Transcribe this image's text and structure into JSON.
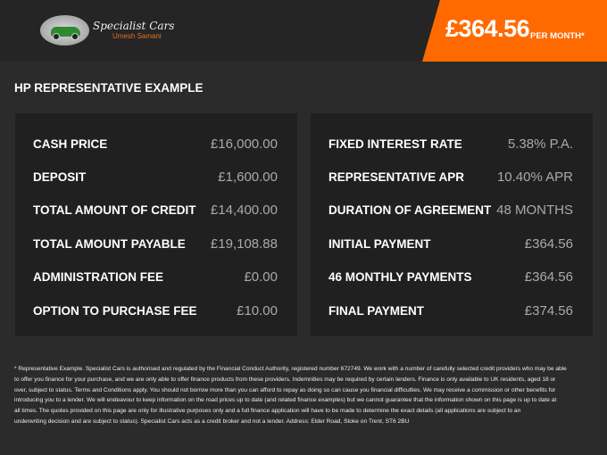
{
  "header": {
    "logo_title": "Specialist Cars",
    "logo_subtitle": "Umesh Samani",
    "price": "£364.56",
    "per_month": "PER MONTH*",
    "accent": "#ff6a00"
  },
  "section_title": "HP REPRESENTATIVE EXAMPLE",
  "left": [
    {
      "label": "CASH PRICE",
      "value": "£16,000.00"
    },
    {
      "label": "DEPOSIT",
      "value": "£1,600.00"
    },
    {
      "label": "TOTAL AMOUNT OF CREDIT",
      "value": "£14,400.00"
    },
    {
      "label": "TOTAL AMOUNT PAYABLE",
      "value": "£19,108.88"
    },
    {
      "label": "ADMINISTRATION FEE",
      "value": "£0.00"
    },
    {
      "label": "OPTION TO PURCHASE FEE",
      "value": "£10.00"
    }
  ],
  "right": [
    {
      "label": "FIXED INTEREST RATE",
      "value": "5.38% P.A."
    },
    {
      "label": "REPRESENTATIVE APR",
      "value": "10.40% APR"
    },
    {
      "label": "DURATION OF AGREEMENT",
      "value": "48 MONTHS"
    },
    {
      "label": "INITIAL PAYMENT",
      "value": "£364.56"
    },
    {
      "label": "46 MONTHLY PAYMENTS",
      "value": "£364.56"
    },
    {
      "label": "FINAL PAYMENT",
      "value": "£374.56"
    }
  ],
  "disclaimer": [
    "* Representative Example. Specialist Cars is authorised and regulated by the Financial Conduct Authority, registered number 672749. We work with a number of carefully selected credit providers who may be able",
    "to offer you finance for your purchase, and we are only able to offer finance products from these providers. Indemnities may be required by certain lenders. Finance is only available to UK residents, aged 18 or",
    "over, subject to status. Terms and Conditions apply. You should not borrow more than you can afford to repay as doing so can cause you financial difficulties. We may receive a commission or other benefits for",
    "introducing you to a lender. We will endeavour to keep information on the road prices up to date (and related finance examples) but we cannot guarantee that the information shown on this page is up to date at",
    "all times. The quotes provided on this page are only for illustrative purposes only and a full finance application will have to be made to determine the exact details (all applications are subject to an",
    "underwriting decision and are subject to status). Specialist Cars acts as a credit broker and not a lender. Address: Elder Road, Stoke on Trent, ST6 2BU"
  ]
}
